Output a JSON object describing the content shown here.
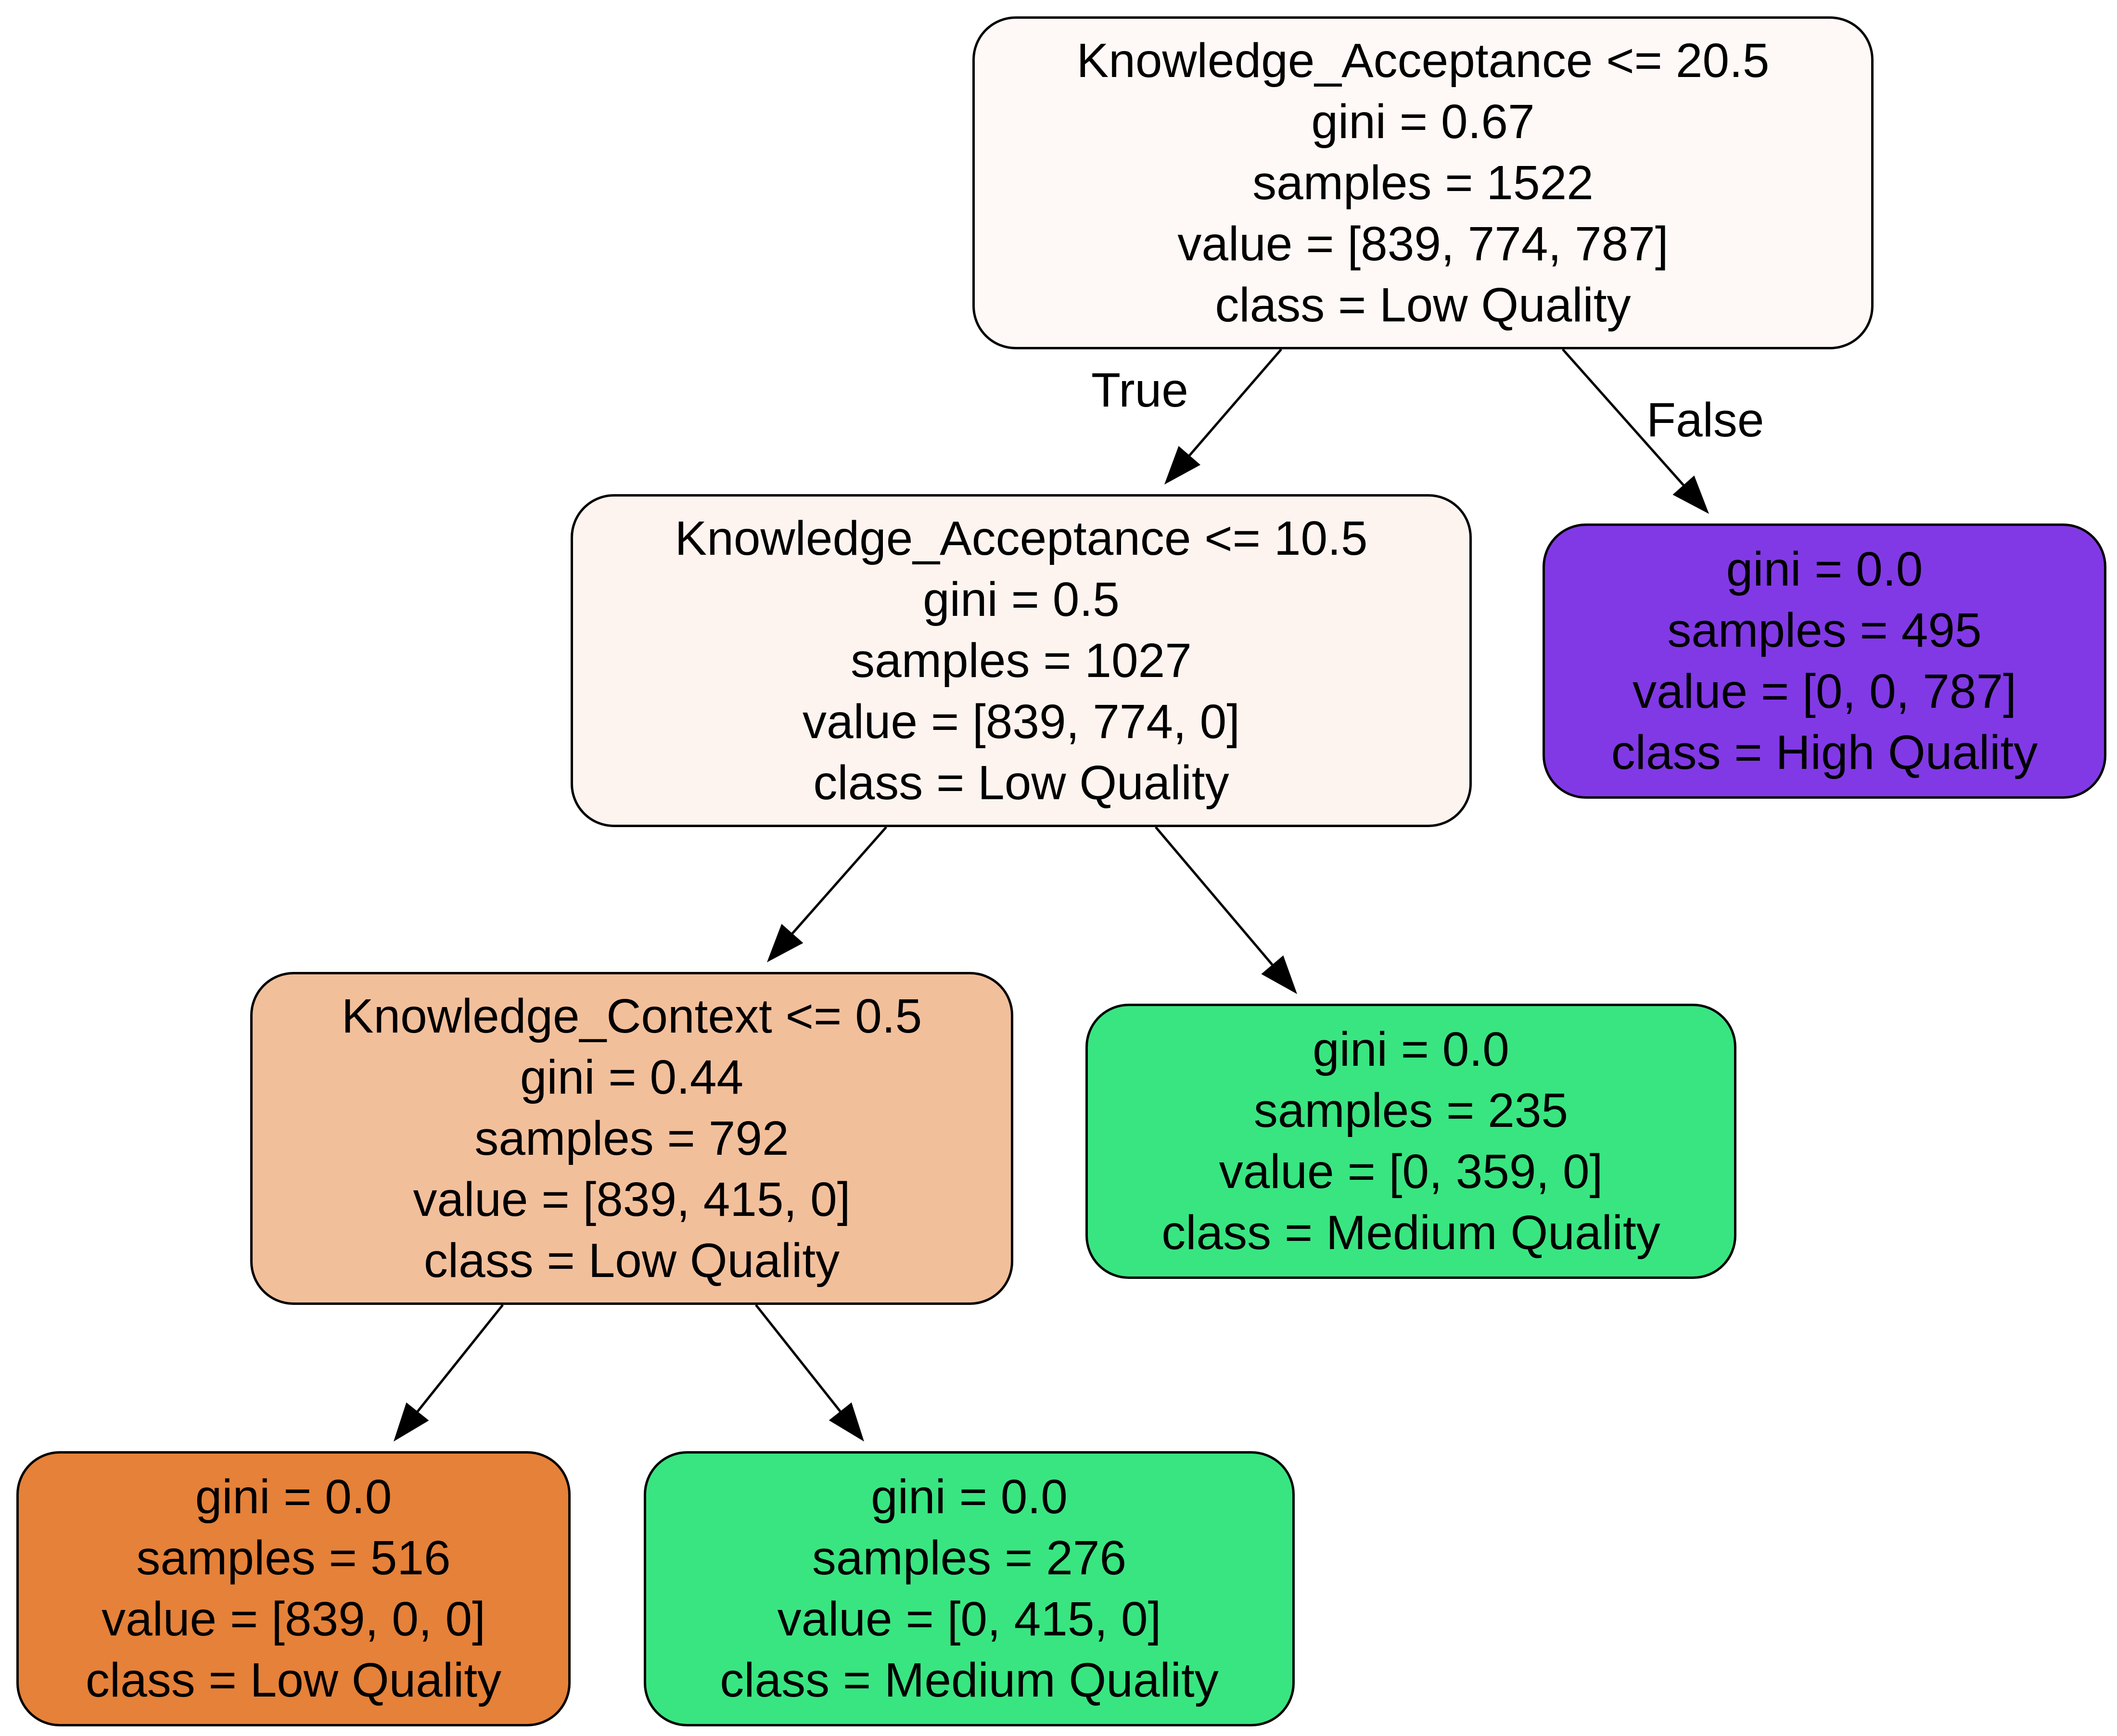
{
  "nodes": [
    {
      "id": "root",
      "lines": [
        "Knowledge_Acceptance <= 20.5",
        "gini = 0.67",
        "samples = 1522",
        "value = [839, 774, 787]",
        "class = Low Quality"
      ],
      "fill": "#fef9f6"
    },
    {
      "id": "n1",
      "lines": [
        "Knowledge_Acceptance <= 10.5",
        "gini = 0.5",
        "samples = 1027",
        "value = [839, 774, 0]",
        "class = Low Quality"
      ],
      "fill": "#fdf4ef"
    },
    {
      "id": "n2",
      "lines": [
        "gini = 0.0",
        "samples = 495",
        "value = [0, 0, 787]",
        "class = High Quality"
      ],
      "fill": "#8139e5"
    },
    {
      "id": "n3",
      "lines": [
        "Knowledge_Context <= 0.5",
        "gini = 0.44",
        "samples = 792",
        "value = [839, 415, 0]",
        "class = Low Quality"
      ],
      "fill": "#f2bf9b"
    },
    {
      "id": "n4",
      "lines": [
        "gini = 0.0",
        "samples = 235",
        "value = [0, 359, 0]",
        "class = Medium Quality"
      ],
      "fill": "#39e581"
    },
    {
      "id": "n5",
      "lines": [
        "gini = 0.0",
        "samples = 516",
        "value = [839, 0, 0]",
        "class = Low Quality"
      ],
      "fill": "#e58139"
    },
    {
      "id": "n6",
      "lines": [
        "gini = 0.0",
        "samples = 276",
        "value = [0, 415, 0]",
        "class = Medium Quality"
      ],
      "fill": "#39e581"
    }
  ],
  "edges": [
    {
      "from": "root",
      "to": "n1",
      "label": "True"
    },
    {
      "from": "root",
      "to": "n2",
      "label": "False"
    },
    {
      "from": "n1",
      "to": "n3",
      "label": ""
    },
    {
      "from": "n1",
      "to": "n4",
      "label": ""
    },
    {
      "from": "n3",
      "to": "n5",
      "label": ""
    },
    {
      "from": "n3",
      "to": "n6",
      "label": ""
    }
  ]
}
